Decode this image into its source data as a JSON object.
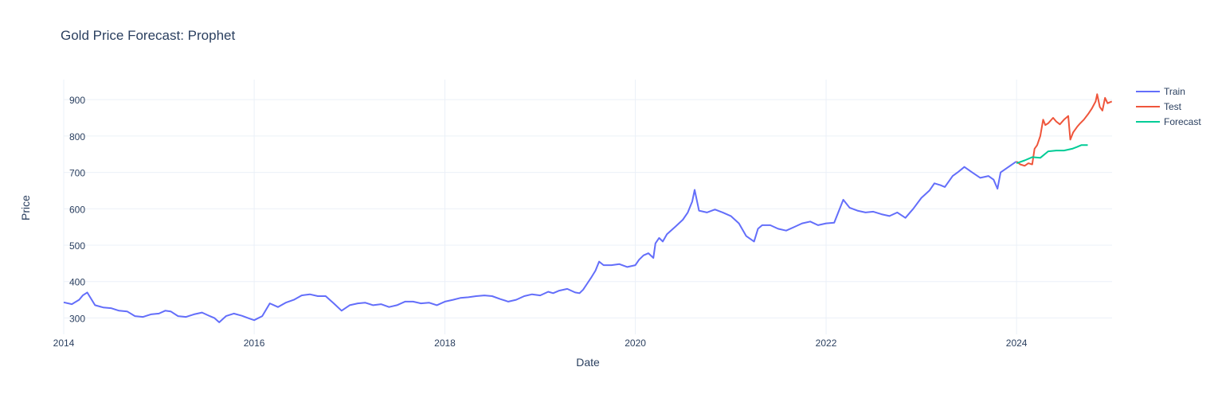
{
  "chart_data": {
    "type": "line",
    "title": "Gold Price Forecast: Prophet",
    "xlabel": "Date",
    "ylabel": "Price",
    "xlim": [
      "2014-01-01",
      "2025-01-01"
    ],
    "ylim": [
      255,
      955
    ],
    "x_ticks": [
      "2014",
      "2016",
      "2018",
      "2020",
      "2022",
      "2024"
    ],
    "y_ticks": [
      300,
      400,
      500,
      600,
      700,
      800,
      900
    ],
    "grid": true,
    "legend_position": "top-right",
    "colors": {
      "Train": "#636efa",
      "Test": "#ef553b",
      "Forecast": "#00cc96"
    },
    "series": [
      {
        "name": "Train",
        "x": [
          "2014-01-01",
          "2014-02-01",
          "2014-03-01",
          "2014-03-15",
          "2014-04-01",
          "2014-05-01",
          "2014-06-01",
          "2014-07-01",
          "2014-08-01",
          "2014-09-01",
          "2014-10-01",
          "2014-11-01",
          "2014-12-01",
          "2015-01-01",
          "2015-01-25",
          "2015-02-15",
          "2015-03-15",
          "2015-04-15",
          "2015-05-15",
          "2015-06-15",
          "2015-07-15",
          "2015-08-01",
          "2015-08-20",
          "2015-09-15",
          "2015-10-15",
          "2015-11-15",
          "2015-12-15",
          "2016-01-01",
          "2016-02-01",
          "2016-03-01",
          "2016-04-01",
          "2016-05-01",
          "2016-06-01",
          "2016-07-01",
          "2016-08-01",
          "2016-09-01",
          "2016-10-01",
          "2016-11-01",
          "2016-12-01",
          "2017-01-01",
          "2017-02-01",
          "2017-03-01",
          "2017-04-01",
          "2017-05-01",
          "2017-06-01",
          "2017-07-01",
          "2017-08-01",
          "2017-09-01",
          "2017-10-01",
          "2017-11-01",
          "2017-12-01",
          "2018-01-01",
          "2018-02-01",
          "2018-03-01",
          "2018-04-01",
          "2018-05-01",
          "2018-06-01",
          "2018-07-01",
          "2018-08-01",
          "2018-09-01",
          "2018-10-01",
          "2018-11-01",
          "2018-12-01",
          "2019-01-01",
          "2019-02-01",
          "2019-02-20",
          "2019-03-15",
          "2019-04-15",
          "2019-05-15",
          "2019-06-01",
          "2019-06-15",
          "2019-07-01",
          "2019-07-15",
          "2019-08-01",
          "2019-08-15",
          "2019-09-01",
          "2019-10-01",
          "2019-11-01",
          "2019-12-01",
          "2020-01-01",
          "2020-01-15",
          "2020-02-01",
          "2020-02-20",
          "2020-03-10",
          "2020-03-18",
          "2020-04-01",
          "2020-04-15",
          "2020-05-01",
          "2020-06-01",
          "2020-07-01",
          "2020-07-20",
          "2020-08-06",
          "2020-08-15",
          "2020-09-01",
          "2020-10-01",
          "2020-11-01",
          "2020-12-01",
          "2021-01-01",
          "2021-02-01",
          "2021-03-01",
          "2021-03-31",
          "2021-04-15",
          "2021-05-01",
          "2021-06-01",
          "2021-07-01",
          "2021-08-01",
          "2021-09-01",
          "2021-10-01",
          "2021-11-01",
          "2021-12-01",
          "2022-01-01",
          "2022-02-01",
          "2022-03-08",
          "2022-04-01",
          "2022-05-01",
          "2022-06-01",
          "2022-07-01",
          "2022-08-01",
          "2022-09-01",
          "2022-10-01",
          "2022-11-01",
          "2022-12-01",
          "2023-01-01",
          "2023-02-01",
          "2023-02-20",
          "2023-03-15",
          "2023-04-01",
          "2023-05-01",
          "2023-05-20",
          "2023-06-15",
          "2023-07-15",
          "2023-08-15",
          "2023-09-15",
          "2023-10-05",
          "2023-10-20",
          "2023-11-01",
          "2023-12-01",
          "2023-12-31"
        ],
        "y": [
          343,
          338,
          350,
          362,
          370,
          335,
          329,
          327,
          320,
          318,
          305,
          303,
          310,
          312,
          320,
          318,
          305,
          303,
          310,
          315,
          305,
          300,
          288,
          305,
          312,
          306,
          298,
          294,
          305,
          340,
          330,
          342,
          350,
          362,
          365,
          360,
          360,
          340,
          320,
          335,
          340,
          342,
          335,
          338,
          330,
          335,
          345,
          345,
          340,
          342,
          335,
          345,
          350,
          355,
          357,
          360,
          362,
          360,
          352,
          345,
          350,
          360,
          365,
          362,
          372,
          368,
          375,
          380,
          370,
          368,
          378,
          395,
          410,
          430,
          455,
          445,
          445,
          448,
          440,
          445,
          460,
          472,
          478,
          465,
          505,
          520,
          510,
          530,
          550,
          570,
          590,
          620,
          652,
          595,
          590,
          598,
          590,
          580,
          560,
          525,
          510,
          545,
          555,
          555,
          545,
          540,
          550,
          560,
          565,
          555,
          560,
          562,
          625,
          603,
          595,
          590,
          592,
          585,
          580,
          590,
          575,
          600,
          630,
          650,
          670,
          665,
          660,
          690,
          700,
          715,
          700,
          685,
          690,
          680,
          655,
          700,
          715,
          730
        ]
      },
      {
        "name": "Test",
        "x": [
          "2024-01-01",
          "2024-01-15",
          "2024-02-01",
          "2024-02-15",
          "2024-03-01",
          "2024-03-10",
          "2024-03-20",
          "2024-04-01",
          "2024-04-12",
          "2024-04-20",
          "2024-05-01",
          "2024-05-20",
          "2024-06-01",
          "2024-06-15",
          "2024-07-01",
          "2024-07-17",
          "2024-07-25",
          "2024-08-05",
          "2024-08-20",
          "2024-09-01",
          "2024-09-15",
          "2024-10-01",
          "2024-10-15",
          "2024-10-30",
          "2024-11-05",
          "2024-11-15",
          "2024-11-25",
          "2024-12-05",
          "2024-12-15",
          "2024-12-31"
        ],
        "y": [
          730,
          722,
          718,
          725,
          722,
          765,
          775,
          800,
          845,
          830,
          835,
          850,
          840,
          832,
          845,
          855,
          790,
          810,
          825,
          835,
          845,
          860,
          875,
          895,
          915,
          880,
          870,
          905,
          890,
          895
        ]
      },
      {
        "name": "Forecast",
        "x": [
          "2024-01-01",
          "2024-02-01",
          "2024-03-01",
          "2024-04-01",
          "2024-05-01",
          "2024-06-01",
          "2024-07-01",
          "2024-08-01",
          "2024-08-20",
          "2024-09-05",
          "2024-09-30"
        ],
        "y": [
          725,
          733,
          742,
          740,
          758,
          760,
          760,
          765,
          770,
          775,
          775
        ]
      }
    ]
  }
}
